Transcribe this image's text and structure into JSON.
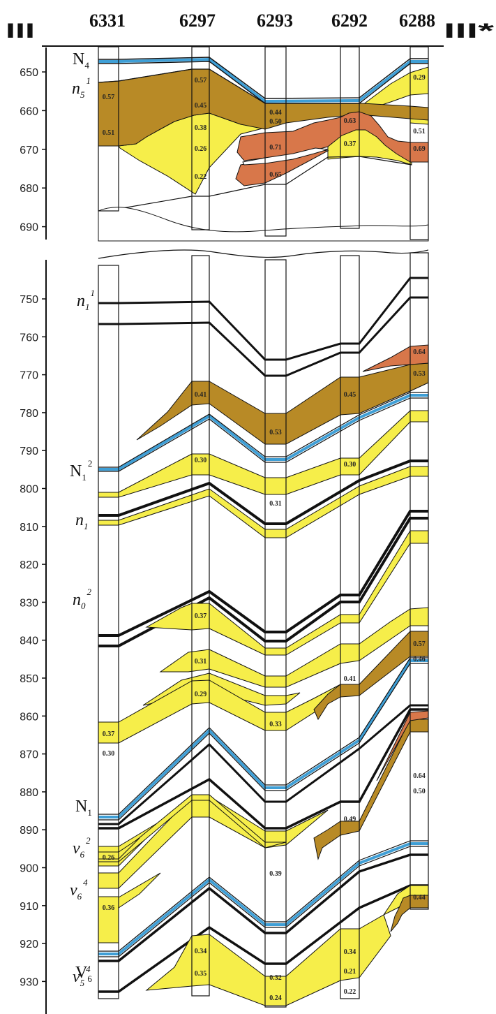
{
  "header": {
    "left_marker": "III",
    "right_marker": "III*",
    "wells": [
      "6331",
      "6297",
      "6293",
      "6292",
      "6288"
    ]
  },
  "colors": {
    "yellow": "#f6ee4a",
    "brown": "#b88a26",
    "orange": "#d8774a",
    "blue": "#3f9fd6",
    "line": "#111111"
  },
  "axis": {
    "upper_ticks": [
      "650",
      "660",
      "670",
      "680",
      "690"
    ],
    "lower_ticks": [
      "750",
      "760",
      "770",
      "780",
      "790",
      "800",
      "810",
      "820",
      "830",
      "840",
      "850",
      "860",
      "870",
      "880",
      "890",
      "900",
      "910",
      "920",
      "930"
    ]
  },
  "horizons": [
    {
      "main": "N",
      "sub": "4",
      "sup": "",
      "italic": false
    },
    {
      "main": "n",
      "sub": "5",
      "sup": "1",
      "italic": true
    },
    {
      "main": "n",
      "sub": "1",
      "sup": "1",
      "italic": true
    },
    {
      "main": "N",
      "sub": "1",
      "sup": "2",
      "italic": false
    },
    {
      "main": "n",
      "sub": "1",
      "sup": "",
      "italic": true
    },
    {
      "main": "n",
      "sub": "0",
      "sup": "2",
      "italic": true
    },
    {
      "main": "N",
      "sub": "1",
      "sup": "",
      "italic": false
    },
    {
      "main": "v",
      "sub": "6",
      "sup": "2",
      "italic": true
    },
    {
      "main": "v",
      "sub": "6",
      "sup": "4",
      "italic": true
    },
    {
      "main": "V",
      "sub": "6",
      "sup": "",
      "italic": false
    },
    {
      "main": "v",
      "sub": "5",
      "sup": "4",
      "italic": true
    }
  ],
  "values": {
    "w6331": [
      "0.57",
      "0.51",
      "0.37",
      "0.30",
      "0.26",
      "0.36"
    ],
    "w6297": [
      "0.57",
      "0.45",
      "0.38",
      "0.26",
      "0.22",
      "0.41",
      "0.30",
      "0.37",
      "0.31",
      "0.29",
      "0.34",
      "0.35"
    ],
    "w6293": [
      "0.44",
      "0.50",
      "0.71",
      "0.65",
      "0.53",
      "0.31",
      "0.33",
      "0.39",
      "0.32",
      "0.24"
    ],
    "w6292": [
      "0.63",
      "0.37",
      "0.45",
      "0.30",
      "0.41",
      "0.49",
      "0.34",
      "0.21",
      "0.22"
    ],
    "w6288": [
      "0.29",
      "0.51",
      "0.69",
      "0.64",
      "0.53",
      "0.57",
      "0.46",
      "0.64",
      "0.50",
      "0.44"
    ]
  }
}
